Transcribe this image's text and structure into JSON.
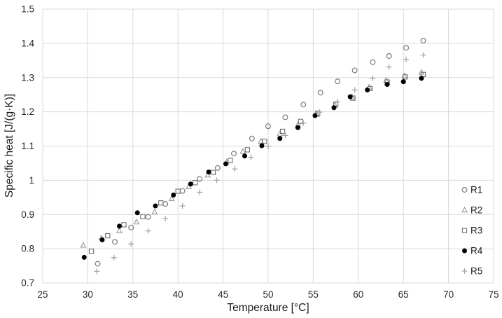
{
  "chart": {
    "x_axis_title": "Temperature [°C]",
    "y_axis_title": "Specific heat [J/(g·K)]",
    "x_tick_labels": [
      "25",
      "30",
      "35",
      "40",
      "45",
      "50",
      "55",
      "60",
      "65",
      "70",
      "75"
    ],
    "y_tick_labels": [
      "0.7",
      "0.8",
      "0.9",
      "1",
      "1.1",
      "1.2",
      "1.3",
      "1.4",
      "1.5"
    ]
  },
  "chart_data": {
    "type": "scatter",
    "title": "",
    "xlabel": "Temperature [°C]",
    "ylabel": "Specific heat [J/(g·K)]",
    "xlim": [
      25,
      75
    ],
    "ylim": [
      0.7,
      1.5
    ],
    "x_tick_step": 5,
    "y_tick_step": 0.1,
    "grid": true,
    "legend_position": "right-inside",
    "colors": {
      "gridline": "#D9D9D9",
      "tick_text": "#262626",
      "axis_title_text": "#1a1a1a",
      "legend_text": "#1a1a1a"
    },
    "series": [
      {
        "name": "R1",
        "marker": "circle-open",
        "color": "#6f6f6f",
        "points": [
          [
            31.1,
            0.756
          ],
          [
            33.0,
            0.82
          ],
          [
            34.8,
            0.862
          ],
          [
            36.7,
            0.893
          ],
          [
            38.6,
            0.931
          ],
          [
            40.5,
            0.969
          ],
          [
            42.4,
            1.004
          ],
          [
            44.4,
            1.036
          ],
          [
            46.2,
            1.078
          ],
          [
            48.2,
            1.122
          ],
          [
            50.0,
            1.158
          ],
          [
            51.9,
            1.184
          ],
          [
            53.9,
            1.221
          ],
          [
            55.8,
            1.256
          ],
          [
            57.7,
            1.289
          ],
          [
            59.6,
            1.321
          ],
          [
            61.6,
            1.345
          ],
          [
            63.4,
            1.363
          ],
          [
            65.3,
            1.387
          ],
          [
            67.2,
            1.408
          ]
        ]
      },
      {
        "name": "R2",
        "marker": "triangle-open",
        "color": "#8f8f8f",
        "points": [
          [
            29.5,
            0.81
          ],
          [
            31.5,
            0.831
          ],
          [
            33.5,
            0.852
          ],
          [
            35.4,
            0.878
          ],
          [
            37.4,
            0.907
          ],
          [
            39.3,
            0.946
          ],
          [
            41.2,
            0.981
          ],
          [
            43.3,
            1.015
          ],
          [
            45.4,
            1.053
          ],
          [
            47.2,
            1.084
          ],
          [
            49.2,
            1.114
          ],
          [
            51.3,
            1.135
          ],
          [
            53.3,
            1.162
          ],
          [
            55.4,
            1.192
          ],
          [
            57.4,
            1.219
          ],
          [
            59.3,
            1.243
          ],
          [
            61.2,
            1.272
          ],
          [
            63.1,
            1.292
          ],
          [
            65.1,
            1.305
          ],
          [
            67.0,
            1.315
          ]
        ]
      },
      {
        "name": "R3",
        "marker": "square-open",
        "color": "#6f6f6f",
        "points": [
          [
            30.4,
            0.793
          ],
          [
            32.2,
            0.838
          ],
          [
            34.0,
            0.87
          ],
          [
            36.1,
            0.894
          ],
          [
            38.1,
            0.934
          ],
          [
            40.0,
            0.968
          ],
          [
            41.9,
            0.993
          ],
          [
            43.9,
            1.023
          ],
          [
            45.8,
            1.058
          ],
          [
            47.7,
            1.089
          ],
          [
            49.6,
            1.114
          ],
          [
            51.6,
            1.143
          ],
          [
            53.6,
            1.172
          ],
          [
            55.5,
            1.196
          ],
          [
            57.5,
            1.222
          ],
          [
            59.4,
            1.24
          ],
          [
            61.3,
            1.268
          ],
          [
            63.2,
            1.287
          ],
          [
            65.2,
            1.302
          ],
          [
            67.2,
            1.309
          ]
        ]
      },
      {
        "name": "R4",
        "marker": "circle-filled",
        "color": "#000000",
        "points": [
          [
            29.6,
            0.775
          ],
          [
            31.6,
            0.826
          ],
          [
            33.5,
            0.866
          ],
          [
            35.5,
            0.905
          ],
          [
            37.5,
            0.925
          ],
          [
            39.5,
            0.957
          ],
          [
            41.4,
            0.989
          ],
          [
            43.4,
            1.024
          ],
          [
            45.3,
            1.048
          ],
          [
            47.4,
            1.071
          ],
          [
            49.3,
            1.101
          ],
          [
            51.3,
            1.122
          ],
          [
            53.3,
            1.154
          ],
          [
            55.2,
            1.189
          ],
          [
            57.3,
            1.212
          ],
          [
            59.1,
            1.244
          ],
          [
            61.0,
            1.264
          ],
          [
            63.2,
            1.28
          ],
          [
            65.0,
            1.288
          ],
          [
            67.0,
            1.298
          ]
        ]
      },
      {
        "name": "R5",
        "marker": "plus",
        "color": "#a6a6a6",
        "points": [
          [
            31.0,
            0.734
          ],
          [
            32.9,
            0.774
          ],
          [
            34.8,
            0.814
          ],
          [
            36.7,
            0.852
          ],
          [
            38.6,
            0.888
          ],
          [
            40.5,
            0.925
          ],
          [
            42.4,
            0.965
          ],
          [
            44.3,
            1.0
          ],
          [
            46.3,
            1.033
          ],
          [
            48.1,
            1.067
          ],
          [
            50.0,
            1.099
          ],
          [
            51.9,
            1.131
          ],
          [
            53.9,
            1.167
          ],
          [
            55.7,
            1.199
          ],
          [
            57.7,
            1.23
          ],
          [
            59.6,
            1.264
          ],
          [
            61.6,
            1.298
          ],
          [
            63.4,
            1.331
          ],
          [
            65.3,
            1.353
          ],
          [
            67.2,
            1.366
          ]
        ]
      }
    ]
  }
}
